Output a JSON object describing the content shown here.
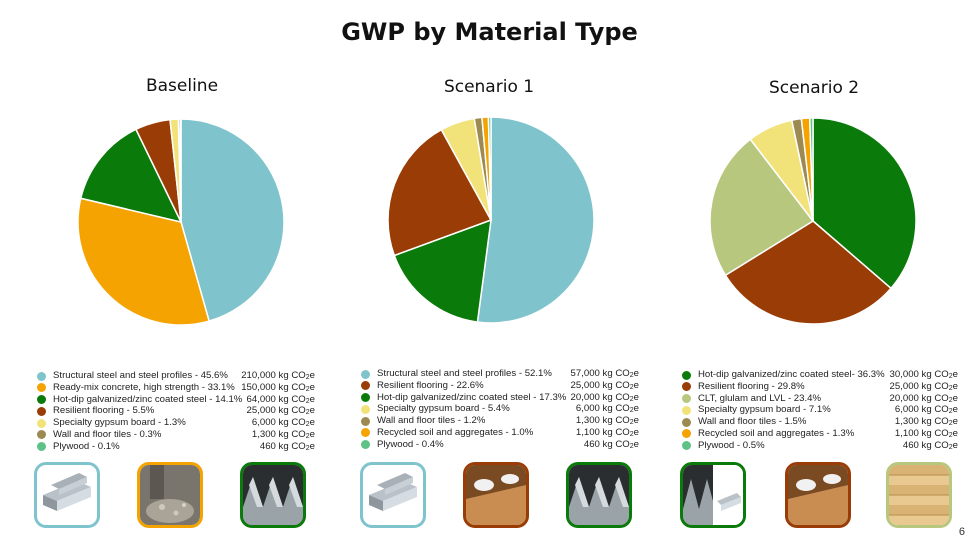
{
  "title": "GWP by Material Type",
  "page_number": "6",
  "unit_prefix": "kg CO",
  "unit_sub": "2",
  "unit_suffix": "e",
  "chart_data": [
    {
      "type": "pie",
      "title": "Baseline",
      "slices": [
        {
          "label": "Structural steel and steel profiles - 45.6%",
          "value": 45.6,
          "color": "#7fc4cc",
          "amount": "210,000"
        },
        {
          "label": "Ready-mix concrete, high strength - 33.1%",
          "value": 33.1,
          "color": "#f5a300",
          "amount": "150,000"
        },
        {
          "label": "Hot-dip galvanized/zinc coated steel - 14.1%",
          "value": 14.1,
          "color": "#0a7a0a",
          "amount": "64,000"
        },
        {
          "label": "Resilient flooring - 5.5%",
          "value": 5.5,
          "color": "#9a3c06",
          "amount": "25,000"
        },
        {
          "label": "Specialty gypsum board - 1.3%",
          "value": 1.3,
          "color": "#f2e27a",
          "amount": "6,000"
        },
        {
          "label": "Wall and floor tiles - 0.3%",
          "value": 0.3,
          "color": "#9c8a52",
          "amount": "1,300"
        },
        {
          "label": "Plywood - 0.1%",
          "value": 0.1,
          "color": "#5ec286",
          "amount": "460"
        }
      ]
    },
    {
      "type": "pie",
      "title": "Scenario 1",
      "slices": [
        {
          "label": "Structural steel and steel profiles - 52.1%",
          "value": 52.1,
          "color": "#7fc4cc",
          "amount": "57,000"
        },
        {
          "label": "Hot-dip galvanized/zinc coated steel - 17.3%",
          "value": 17.3,
          "color": "#0a7a0a",
          "amount": "20,000"
        },
        {
          "label": "Resilient flooring - 22.6%",
          "value": 22.6,
          "color": "#9a3c06",
          "amount": "25,000"
        },
        {
          "label": "Specialty gypsum board - 5.4%",
          "value": 5.4,
          "color": "#f2e27a",
          "amount": "6,000"
        },
        {
          "label": "Wall and floor tiles - 1.2%",
          "value": 1.2,
          "color": "#9c8a52",
          "amount": "1,300"
        },
        {
          "label": "Recycled soil and aggregates - 1.0%",
          "value": 1.0,
          "color": "#f5a300",
          "amount": "1,100"
        },
        {
          "label": "Plywood - 0.4%",
          "value": 0.4,
          "color": "#5ec286",
          "amount": "460"
        }
      ],
      "legend_order": [
        0,
        2,
        1,
        3,
        4,
        5,
        6
      ]
    },
    {
      "type": "pie",
      "title": "Scenario 2",
      "slices": [
        {
          "label": "Hot-dip galvanized/zinc coated steel- 36.3%",
          "value": 36.3,
          "color": "#0a7a0a",
          "amount": "30,000"
        },
        {
          "label": "Resilient flooring - 29.8%",
          "value": 29.8,
          "color": "#9a3c06",
          "amount": "25,000"
        },
        {
          "label": "CLT, glulam and LVL - 23.4%",
          "value": 23.4,
          "color": "#b8c77e",
          "amount": "20,000"
        },
        {
          "label": "Specialty gypsum board - 7.1%",
          "value": 7.1,
          "color": "#f2e27a",
          "amount": "6,000"
        },
        {
          "label": "Wall and floor tiles - 1.5%",
          "value": 1.5,
          "color": "#9c8a52",
          "amount": "1,300"
        },
        {
          "label": "Recycled soil and aggregates - 1.3%",
          "value": 1.3,
          "color": "#f5a300",
          "amount": "1,100"
        },
        {
          "label": "Plywood - 0.5%",
          "value": 0.5,
          "color": "#5ec286",
          "amount": "460"
        }
      ]
    }
  ],
  "thumbnails": [
    {
      "name": "steel-profiles-image",
      "border": "#7fc4cc"
    },
    {
      "name": "concrete-image",
      "border": "#f5a300"
    },
    {
      "name": "galvanized-steel-image",
      "border": "#0a7a0a"
    },
    {
      "name": "steel-profiles-image",
      "border": "#7fc4cc"
    },
    {
      "name": "flooring-image",
      "border": "#9a3c06"
    },
    {
      "name": "galvanized-steel-image",
      "border": "#0a7a0a"
    },
    {
      "name": "galvanized-steel-image",
      "border": "#0a7a0a"
    },
    {
      "name": "flooring-image",
      "border": "#9a3c06"
    },
    {
      "name": "clt-image",
      "border": "#b8c77e"
    }
  ]
}
